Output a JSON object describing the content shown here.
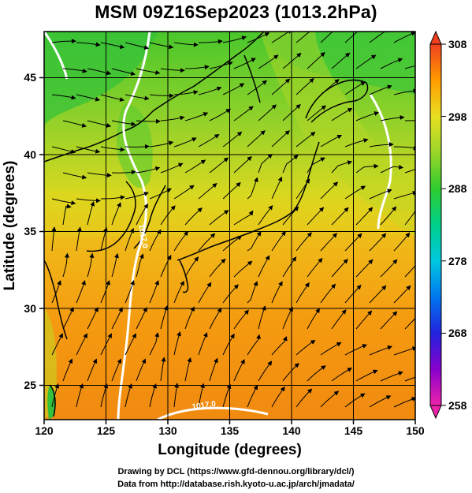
{
  "title": "MSM 09Z16Sep2023 (1013.2hPa)",
  "map": {
    "lon_range": [
      120,
      150
    ],
    "lat_range": [
      22.4,
      47.6
    ],
    "x_ticks": [
      "120",
      "125",
      "130",
      "135",
      "140",
      "145",
      "150"
    ],
    "y_ticks": [
      "25",
      "30",
      "35",
      "40",
      "45"
    ],
    "xlabel": "Longitude (degrees)",
    "ylabel": "Latitude  (degrees)",
    "contour_labels": [
      "1017.0",
      "1017.0"
    ]
  },
  "colorbar": {
    "ticks": [
      "308",
      "298",
      "288",
      "278",
      "268",
      "258"
    ],
    "min": 258,
    "max": 308,
    "colors": [
      "#ee22aa",
      "#8800cc",
      "#2222dd",
      "#0077ee",
      "#00c8e0",
      "#00d08a",
      "#2ecc2e",
      "#9ad62a",
      "#e8e020",
      "#ff9c00",
      "#f04020"
    ]
  },
  "credits": {
    "line1": "Drawing by DCL (https://www.gfd-dennou.org/library/dcl/)",
    "line2": "Data from http://database.rish.kyoto-u.ac.jp/arch/jmadata/"
  }
}
